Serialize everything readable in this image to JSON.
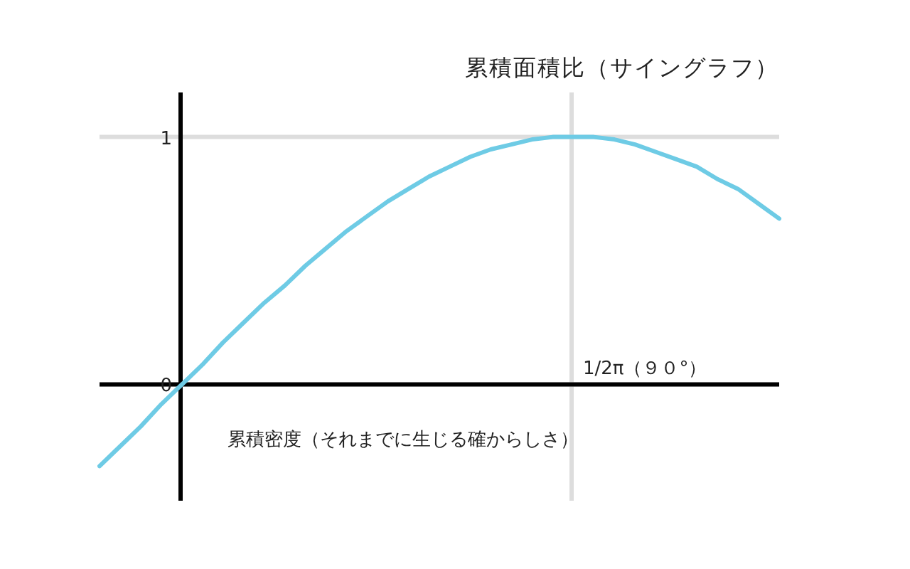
{
  "chart_data": {
    "type": "line",
    "title": "累積面積比（サイングラフ）",
    "xlabel": "累積密度（それまでに生じる確からしさ）",
    "categories": [
      null,
      null,
      null,
      null,
      null,
      null,
      null,
      null,
      null,
      null,
      null,
      null,
      null,
      null,
      null,
      null,
      null,
      null,
      null,
      null,
      null,
      null,
      null,
      null,
      null,
      null,
      null,
      null,
      null,
      null,
      null,
      null,
      null,
      null
    ],
    "series": [
      {
        "color": "#6ecbe5",
        "values": [
          -0.33,
          -0.25,
          -0.17,
          -0.08,
          0,
          0.08,
          0.17,
          0.25,
          0.33,
          0.4,
          0.48,
          0.55,
          0.62,
          0.68,
          0.74,
          0.79,
          0.84,
          0.88,
          0.92,
          0.95,
          0.97,
          0.99,
          1.0,
          1.0,
          1.0,
          0.99,
          0.97,
          0.94,
          0.91,
          0.88,
          0.83,
          0.79,
          0.73,
          0.67
        ]
      }
    ],
    "ylim": [
      -0.47,
      1.18
    ],
    "yticks": [
      0,
      1
    ],
    "grid": "y",
    "annotations": [
      "1/2π（９０°）"
    ]
  }
}
